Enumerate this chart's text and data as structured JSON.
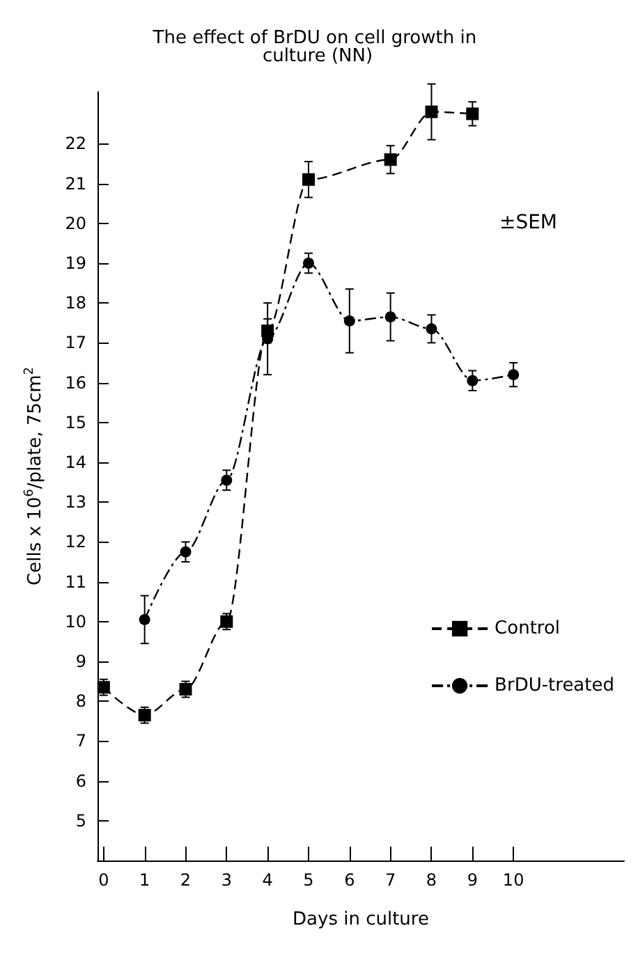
{
  "chart_data": {
    "type": "line",
    "title": "The effect of BrDU on cell growth in culture (NN)",
    "xlabel": "Days in culture",
    "ylabel": "Cells x 10$^{6}$/plate, 75cm$^{2}$",
    "annotations": [
      "±SEM"
    ],
    "series": [
      {
        "name": "Control",
        "color": "#000000",
        "marker": "square",
        "line_style": "dashed",
        "x": [
          0,
          1,
          2,
          3,
          4,
          5,
          7,
          8,
          9
        ],
        "values": [
          8.35,
          7.65,
          8.3,
          10.0,
          17.3,
          21.1,
          21.6,
          22.8,
          22.75
        ],
        "errors": [
          0.2,
          0.2,
          0.2,
          0.2,
          0.3,
          0.45,
          0.35,
          0.7,
          0.3
        ]
      },
      {
        "name": "BrDU-treated",
        "color": "#000000",
        "marker": "circle",
        "line_style": "dotted",
        "x": [
          1,
          2,
          3,
          4,
          5,
          6,
          7,
          8,
          9,
          10
        ],
        "values": [
          10.05,
          11.75,
          13.55,
          17.1,
          19.0,
          17.55,
          17.65,
          17.35,
          16.05,
          16.2
        ],
        "errors": [
          0.6,
          0.25,
          0.25,
          0.9,
          0.25,
          0.8,
          0.6,
          0.35,
          0.25,
          0.3
        ]
      }
    ],
    "xlim": [
      -0.15,
      12.7
    ],
    "xticks": [
      0,
      1,
      2,
      3,
      4,
      5,
      6,
      7,
      8,
      9,
      10
    ],
    "ylim": [
      4,
      23.3
    ],
    "yticks": [
      5,
      6,
      7,
      8,
      9,
      10,
      11,
      12,
      13,
      14,
      15,
      16,
      17,
      18,
      19,
      20,
      21,
      22
    ],
    "grid": false,
    "legend": "right"
  }
}
